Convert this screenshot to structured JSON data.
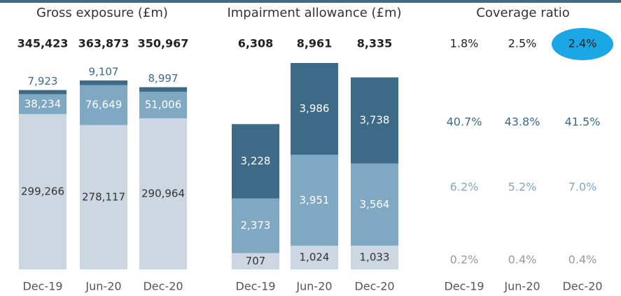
{
  "chart_data": [
    {
      "type": "stacked_bar",
      "title": "Gross exposure (£m)",
      "categories": [
        "Dec-19",
        "Jun-20",
        "Dec-20"
      ],
      "series": [
        {
          "color": "#cdd7e1",
          "values": [
            299266,
            278117,
            290964
          ],
          "value_labels": [
            "299,266",
            "278,117",
            "290,964"
          ]
        },
        {
          "color": "#7fa8c3",
          "values": [
            38234,
            76649,
            51006
          ],
          "value_labels": [
            "38,234",
            "76,649",
            "51,006"
          ]
        },
        {
          "color": "#3d6a87",
          "values": [
            7923,
            9107,
            8997
          ],
          "value_labels": [
            "7,923",
            "9,107",
            "8,997"
          ]
        }
      ],
      "totals": {
        "values": [
          345423,
          363873,
          350967
        ],
        "value_labels": [
          "345,423",
          "363,873",
          "350,967"
        ]
      }
    },
    {
      "type": "stacked_bar",
      "title": "Impairment allowance (£m)",
      "categories": [
        "Dec-19",
        "Jun-20",
        "Dec-20"
      ],
      "series": [
        {
          "color": "#cdd7e1",
          "values": [
            707,
            1024,
            1033
          ],
          "value_labels": [
            "707",
            "1,024",
            "1,033"
          ]
        },
        {
          "color": "#7fa8c3",
          "values": [
            2373,
            3951,
            3564
          ],
          "value_labels": [
            "2,373",
            "3,951",
            "3,564"
          ]
        },
        {
          "color": "#3d6a87",
          "values": [
            3228,
            3986,
            3738
          ],
          "value_labels": [
            "3,228",
            "3,986",
            "3,738"
          ]
        }
      ],
      "totals": {
        "values": [
          6308,
          8961,
          8335
        ],
        "value_labels": [
          "6,308",
          "8,961",
          "8,335"
        ]
      }
    },
    {
      "type": "ratio_table",
      "title": "Coverage ratio",
      "categories": [
        "Dec-19",
        "Jun-20",
        "Dec-20"
      ],
      "rows": [
        [
          "1.8%",
          "2.5%",
          "2.4%"
        ],
        [
          "40.7%",
          "43.8%",
          "41.5%"
        ],
        [
          "6.2%",
          "5.2%",
          "7.0%"
        ],
        [
          "0.2%",
          "0.4%",
          "0.4%"
        ]
      ],
      "row_colors": [
        "#222222",
        "#3d6a87",
        "#7fa8c3",
        "#9a9a9a"
      ],
      "highlight": {
        "row": 0,
        "column": 2,
        "color": "#1ba6e6"
      }
    }
  ]
}
